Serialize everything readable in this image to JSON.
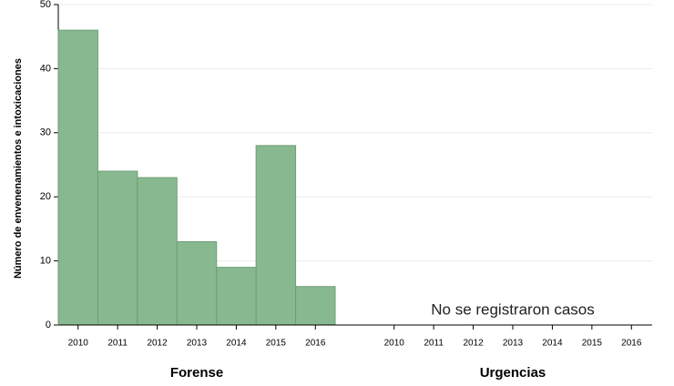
{
  "chart_data": [
    {
      "type": "bar",
      "title": "Forense",
      "ylabel": "Número de envenenamientos e intoxicaciones",
      "categories": [
        "2010",
        "2011",
        "2012",
        "2013",
        "2014",
        "2015",
        "2016"
      ],
      "values": [
        46,
        24,
        23,
        13,
        9,
        28,
        6
      ],
      "color": "#88b890",
      "ylim": [
        0,
        50
      ],
      "yticks": [
        0,
        10,
        20,
        30,
        40,
        50
      ],
      "grid": true
    },
    {
      "type": "bar",
      "title": "Urgencias",
      "categories": [
        "2010",
        "2011",
        "2012",
        "2013",
        "2014",
        "2015",
        "2016"
      ],
      "annotation": "No se  registraron casos",
      "ylim": [
        0,
        50
      ],
      "yticks": [
        0,
        10,
        20,
        30,
        40,
        50
      ],
      "grid": true
    }
  ]
}
